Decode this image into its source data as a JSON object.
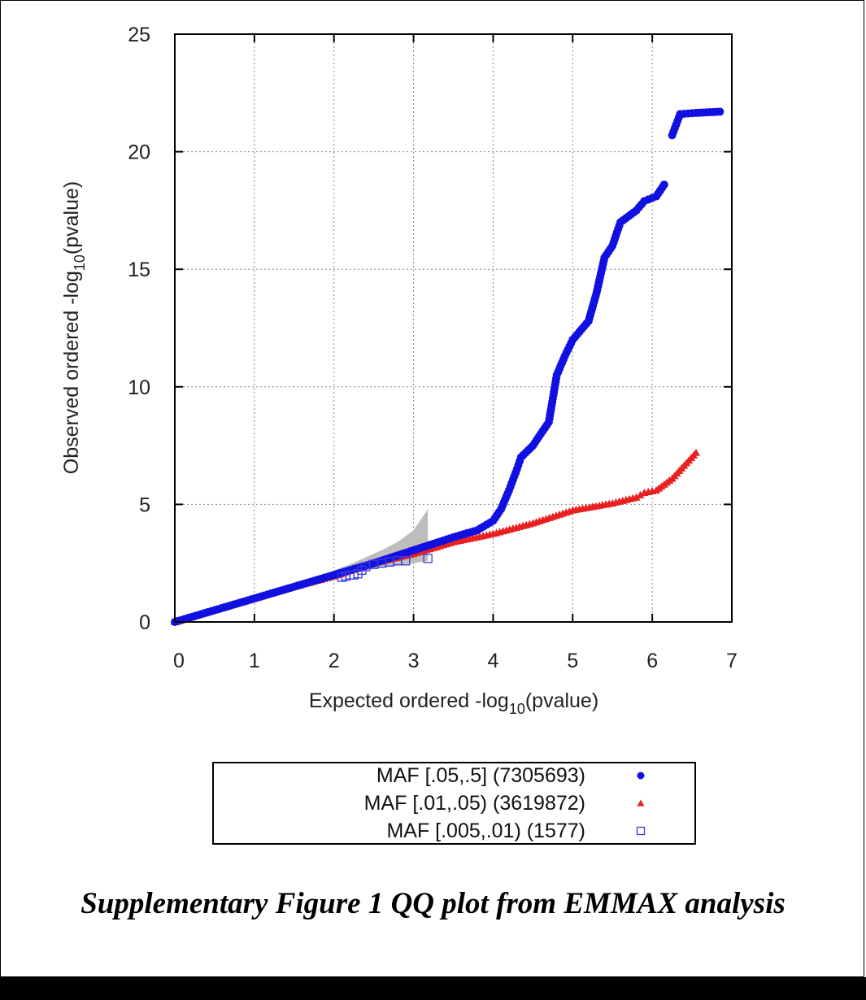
{
  "caption": "Supplementary Figure 1 QQ plot from EMMAX analysis",
  "chart_data": {
    "type": "scatter",
    "xlabel": {
      "prefix": "Expected ordered -log",
      "sub": "10",
      "suffix": "(pvalue)"
    },
    "ylabel": {
      "prefix": "Observed ordered -log",
      "sub": "10",
      "suffix": "(pvalue)"
    },
    "xlim": [
      0,
      7
    ],
    "ylim": [
      0,
      25
    ],
    "xticks": [
      "0",
      "1",
      "2",
      "3",
      "4",
      "5",
      "6",
      "7"
    ],
    "yticks": [
      "0",
      "5",
      "10",
      "15",
      "20",
      "25"
    ],
    "grid": true,
    "legend_position": "below",
    "confidence_band": {
      "color": "#bdbdbd",
      "x": [
        2.0,
        2.2,
        2.4,
        2.6,
        2.8,
        3.0,
        3.18
      ],
      "lower": [
        1.95,
        2.1,
        2.2,
        2.3,
        2.4,
        2.5,
        2.6
      ],
      "upper": [
        2.2,
        2.45,
        2.75,
        3.05,
        3.4,
        3.9,
        4.8
      ]
    },
    "series": [
      {
        "name": "MAF [.05,.5] (7305693)",
        "marker": "circle",
        "color": "#1010e0",
        "points": [
          [
            0,
            0
          ],
          [
            0.5,
            0.5
          ],
          [
            1,
            1
          ],
          [
            1.5,
            1.5
          ],
          [
            2,
            2
          ],
          [
            2.5,
            2.5
          ],
          [
            3,
            3.05
          ],
          [
            3.5,
            3.6
          ],
          [
            3.8,
            3.9
          ],
          [
            4.0,
            4.3
          ],
          [
            4.1,
            4.8
          ],
          [
            4.2,
            5.6
          ],
          [
            4.3,
            6.5
          ],
          [
            4.35,
            7.0
          ],
          [
            4.5,
            7.5
          ],
          [
            4.7,
            8.5
          ],
          [
            4.75,
            9.5
          ],
          [
            4.8,
            10.5
          ],
          [
            4.9,
            11.3
          ],
          [
            5.0,
            12.0
          ],
          [
            5.2,
            12.8
          ],
          [
            5.3,
            14.0
          ],
          [
            5.4,
            15.5
          ],
          [
            5.5,
            16.0
          ],
          [
            5.6,
            17.0
          ],
          [
            5.8,
            17.5
          ],
          [
            5.9,
            17.9
          ],
          [
            6.05,
            18.1
          ],
          [
            6.15,
            18.6
          ],
          [
            6.25,
            20.7
          ],
          [
            6.35,
            21.6
          ],
          [
            6.55,
            21.65
          ],
          [
            6.85,
            21.7
          ]
        ]
      },
      {
        "name": "MAF [.01,.05) (3619872)",
        "marker": "triangle",
        "color": "#e82020",
        "points": [
          [
            0,
            0
          ],
          [
            0.5,
            0.5
          ],
          [
            1,
            1
          ],
          [
            1.5,
            1.5
          ],
          [
            2,
            1.95
          ],
          [
            2.5,
            2.5
          ],
          [
            3,
            2.9
          ],
          [
            3.5,
            3.4
          ],
          [
            4.0,
            3.75
          ],
          [
            4.5,
            4.2
          ],
          [
            5.0,
            4.75
          ],
          [
            5.5,
            5.05
          ],
          [
            5.8,
            5.3
          ],
          [
            5.9,
            5.5
          ],
          [
            6.05,
            5.6
          ],
          [
            6.25,
            6.1
          ],
          [
            6.55,
            7.2
          ]
        ]
      },
      {
        "name": "MAF [.005,.01) (1577)",
        "marker": "open-square",
        "color": "#3a3ae0",
        "points": [
          [
            2.1,
            1.9
          ],
          [
            2.15,
            1.95
          ],
          [
            2.2,
            2.0
          ],
          [
            2.25,
            2.0
          ],
          [
            2.3,
            2.05
          ],
          [
            2.35,
            2.2
          ],
          [
            2.4,
            2.35
          ],
          [
            2.5,
            2.45
          ],
          [
            2.6,
            2.5
          ],
          [
            2.7,
            2.55
          ],
          [
            2.8,
            2.6
          ],
          [
            2.9,
            2.6
          ],
          [
            3.18,
            2.7
          ]
        ]
      }
    ]
  }
}
